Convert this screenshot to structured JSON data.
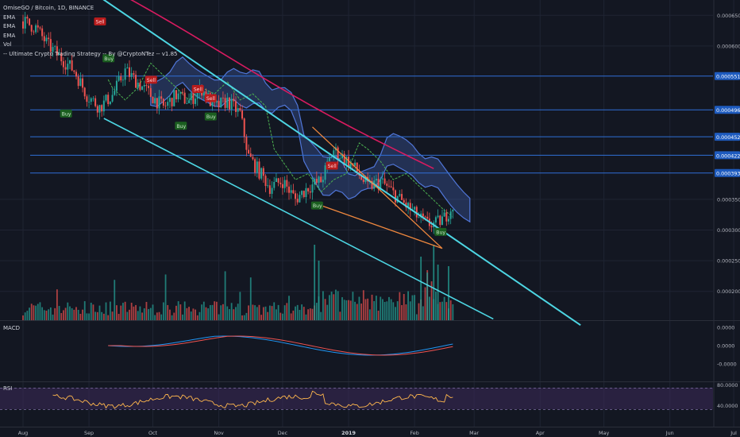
{
  "legend": {
    "symbol": "OmiseGO / Bitcoin, 1D, BINANCE",
    "ema1": "EMA",
    "ema2": "EMA",
    "ema3": "EMA",
    "vol": "Vol",
    "strategy": "-- Ultimate Crypto Trading Strategy -- By @CryptoNTez -- v1.85"
  },
  "macd_label": "MACD",
  "rsi_label": "RSI",
  "colors": {
    "bg": "#131722",
    "grid": "#1f2433",
    "up": "#26a69a",
    "down": "#ef5350",
    "cyan": "#4dd6e3",
    "orange": "#f0883e",
    "crimson": "#d81b60",
    "cloud": "#5076d8",
    "hline": "#2f6fd6",
    "macd": "#2196f3",
    "signal": "#ef5350",
    "rsi": "#ffb74d"
  },
  "chart_data": {
    "type": "candlestick",
    "x_axis": {
      "labels": [
        "Aug",
        "Sep",
        "Oct",
        "Nov",
        "Dec",
        "2019",
        "Feb",
        "Mar",
        "Apr",
        "May",
        "Jun",
        "Jul"
      ],
      "day_offsets": [
        0,
        31,
        61,
        92,
        122,
        153,
        184,
        212,
        243,
        273,
        304,
        334
      ]
    },
    "y_axis": {
      "ticks": [
        "0.000650",
        "0.000600",
        "0.000350",
        "0.000300",
        "0.000250",
        "0.000200"
      ],
      "tick_values": [
        0.00065,
        0.0006,
        0.00035,
        0.0003,
        0.00025,
        0.0002
      ],
      "range": [
        0.000153,
        0.000675
      ]
    },
    "price_levels": [
      {
        "label": "0.000551",
        "value": 0.000551
      },
      {
        "label": "0.000496",
        "value": 0.000496
      },
      {
        "label": "0.000452",
        "value": 0.000452
      },
      {
        "label": "0.000422",
        "value": 0.000422
      },
      {
        "label": "0.000393",
        "value": 0.000393
      }
    ],
    "price_path": [
      [
        0,
        0.00064
      ],
      [
        6,
        0.00063
      ],
      [
        12,
        0.0006
      ],
      [
        18,
        0.00058
      ],
      [
        24,
        0.00056
      ],
      [
        30,
        0.00052
      ],
      [
        36,
        0.0005
      ],
      [
        42,
        0.00052
      ],
      [
        48,
        0.00056
      ],
      [
        54,
        0.00054
      ],
      [
        60,
        0.00052
      ],
      [
        66,
        0.0005
      ],
      [
        72,
        0.00052
      ],
      [
        78,
        0.00051
      ],
      [
        84,
        0.00053
      ],
      [
        90,
        0.0005
      ],
      [
        96,
        0.00051
      ],
      [
        102,
        0.00049
      ],
      [
        106,
        0.00042
      ],
      [
        110,
        0.0004
      ],
      [
        116,
        0.00037
      ],
      [
        122,
        0.00038
      ],
      [
        128,
        0.00035
      ],
      [
        134,
        0.00037
      ],
      [
        140,
        0.00038
      ],
      [
        146,
        0.00043
      ],
      [
        150,
        0.00042
      ],
      [
        156,
        0.0004
      ],
      [
        162,
        0.00037
      ],
      [
        168,
        0.00038
      ],
      [
        174,
        0.00036
      ],
      [
        180,
        0.00034
      ],
      [
        186,
        0.00032
      ],
      [
        190,
        0.00031
      ],
      [
        194,
        0.00031
      ],
      [
        198,
        0.00032
      ],
      [
        202,
        0.00034
      ]
    ],
    "signals": [
      {
        "label": "Sell",
        "day": 36,
        "price": 0.00064,
        "side": "sell"
      },
      {
        "label": "Buy",
        "day": 40,
        "price": 0.00058,
        "side": "buy"
      },
      {
        "label": "Buy",
        "day": 20,
        "price": 0.00049,
        "side": "buy"
      },
      {
        "label": "Sell",
        "day": 60,
        "price": 0.000545,
        "side": "sell"
      },
      {
        "label": "Sell",
        "day": 82,
        "price": 0.00053,
        "side": "sell"
      },
      {
        "label": "Buy",
        "day": 74,
        "price": 0.00047,
        "side": "buy"
      },
      {
        "label": "Sell",
        "day": 88,
        "price": 0.000515,
        "side": "sell"
      },
      {
        "label": "Buy",
        "day": 88,
        "price": 0.000485,
        "side": "buy"
      },
      {
        "label": "Sell",
        "day": 145,
        "price": 0.000405,
        "side": "sell"
      },
      {
        "label": "Buy",
        "day": 138,
        "price": 0.00034,
        "side": "buy"
      },
      {
        "label": "Buy",
        "day": 196,
        "price": 0.000297,
        "side": "buy"
      }
    ],
    "panes": [
      {
        "name": "MACD",
        "ticks": [
          "0.0000",
          "0.0000",
          "-0.0000"
        ],
        "tick_values": [
          0.01,
          0,
          -0.01
        ]
      },
      {
        "name": "RSI",
        "ticks": [
          "80.0000",
          "40.0000"
        ],
        "tick_values": [
          80,
          40
        ]
      }
    ]
  }
}
